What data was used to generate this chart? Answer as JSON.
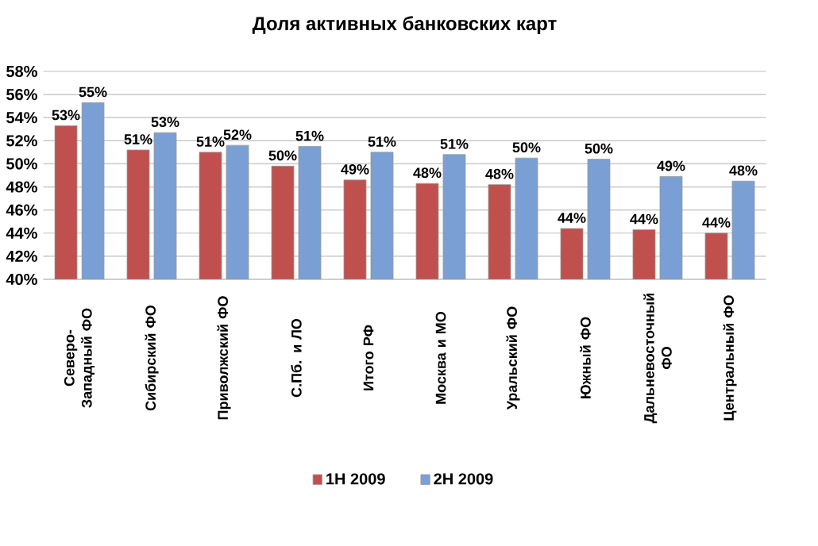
{
  "chart_data": {
    "type": "bar",
    "title": "Доля активных банковских карт",
    "categories": [
      "Северо-Западный ФО",
      "Сибирский ФО",
      "Приволжский ФО",
      "С.Пб. и ЛО",
      "Итого РФ",
      "Москва и МО",
      "Уральский ФО",
      "Южный ФО",
      "Дальневосточный ФО",
      "Центральный ФО"
    ],
    "series": [
      {
        "name": "1Н 2009",
        "color": "#c0504d",
        "values": [
          53.3,
          51.2,
          51.0,
          49.8,
          48.6,
          48.3,
          48.2,
          44.4,
          44.3,
          44.0
        ],
        "value_labels": [
          "53%",
          "51%",
          "51%",
          "50%",
          "49%",
          "48%",
          "48%",
          "44%",
          "44%",
          "44%"
        ]
      },
      {
        "name": "2Н 2009",
        "color": "#7a9fd4",
        "values": [
          55.3,
          52.7,
          51.6,
          51.5,
          51.0,
          50.8,
          50.5,
          50.4,
          48.9,
          48.5
        ],
        "value_labels": [
          "55%",
          "53%",
          "52%",
          "51%",
          "51%",
          "51%",
          "50%",
          "50%",
          "49%",
          "48%"
        ]
      }
    ],
    "ylim": [
      40,
      58
    ],
    "yticks": [
      {
        "value": 40,
        "label": "40%"
      },
      {
        "value": 42,
        "label": "42%"
      },
      {
        "value": 44,
        "label": "44%"
      },
      {
        "value": 46,
        "label": "46%"
      },
      {
        "value": 48,
        "label": "48%"
      },
      {
        "value": 50,
        "label": "50%"
      },
      {
        "value": 52,
        "label": "52%"
      },
      {
        "value": 54,
        "label": "54%"
      },
      {
        "value": 56,
        "label": "56%"
      },
      {
        "value": 58,
        "label": "58%"
      }
    ],
    "grid": "y",
    "legend": "bottom"
  }
}
